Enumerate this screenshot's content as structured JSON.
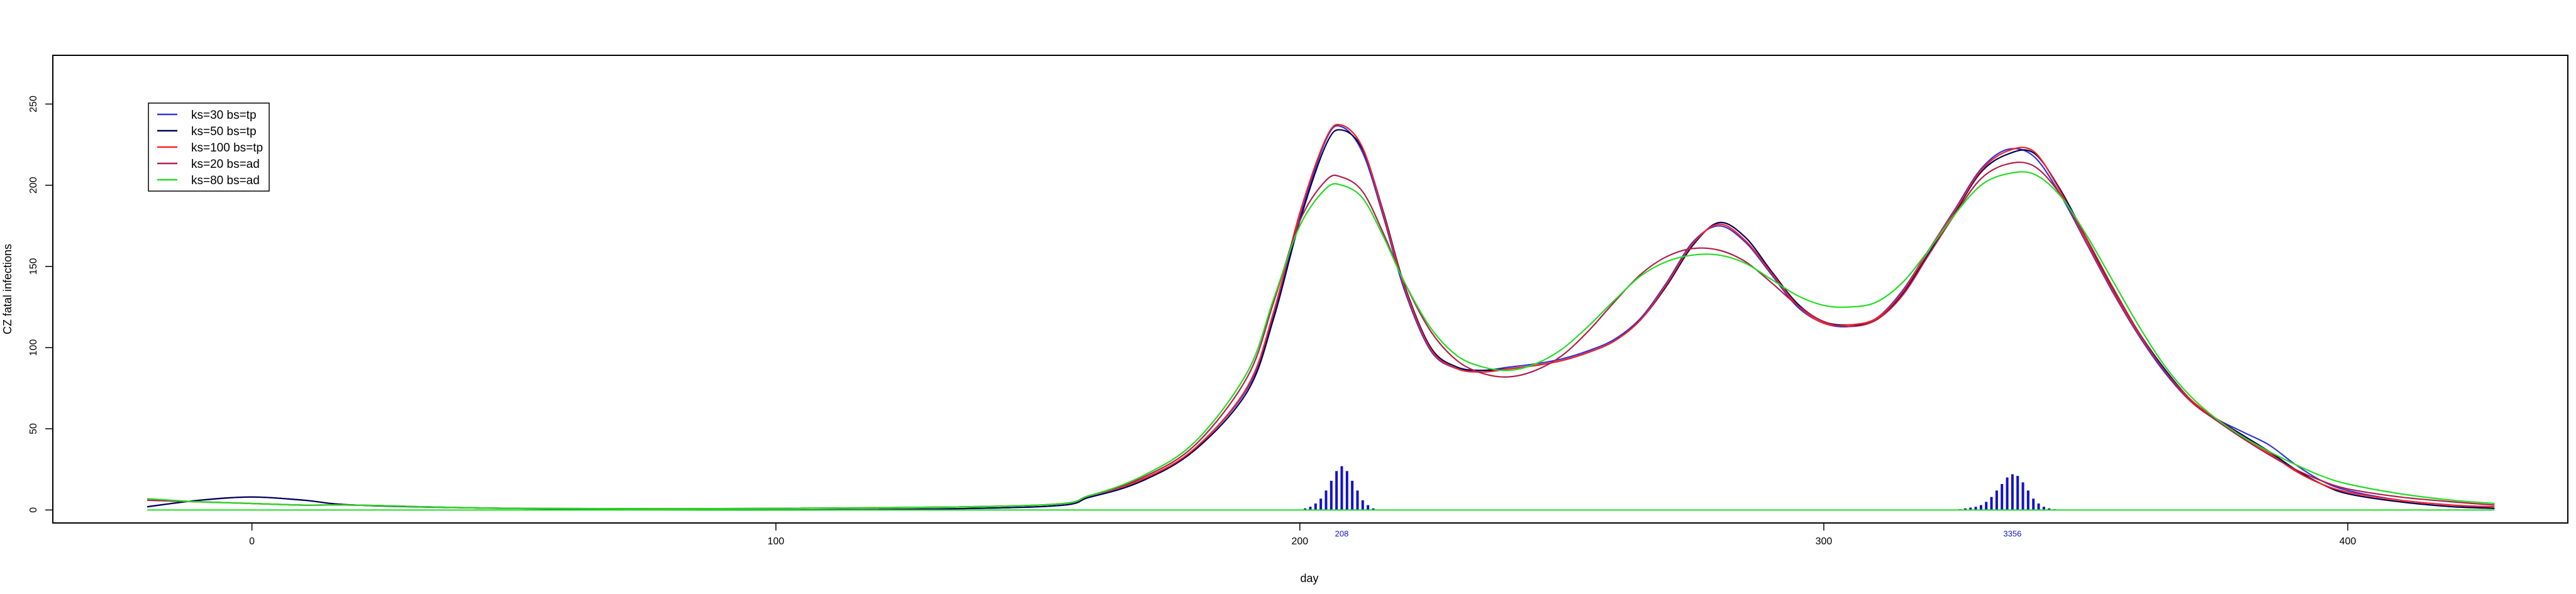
{
  "chart_data": {
    "type": "line",
    "xlabel": "day",
    "ylabel": "CZ fatal infections",
    "xlim": [
      -38,
      442
    ],
    "ylim": [
      -8,
      280
    ],
    "x_ticks": [
      0,
      100,
      200,
      300,
      400
    ],
    "x_tick_labels": [
      "0",
      "100",
      "200",
      "300",
      "400"
    ],
    "y_ticks": [
      0,
      50,
      100,
      150,
      200,
      250
    ],
    "y_tick_labels": [
      "0",
      "50",
      "100",
      "150",
      "200",
      "250"
    ],
    "grid": false,
    "legend_position": "top-left",
    "series": [
      {
        "name": "ks=30 bs=tp",
        "color": "#3333dd",
        "x": [
          -20,
          -10,
          0,
          10,
          20,
          50,
          100,
          150,
          160,
          170,
          180,
          190,
          195,
          200,
          205,
          208,
          212,
          216,
          220,
          225,
          230,
          235,
          240,
          245,
          250,
          255,
          260,
          265,
          270,
          275,
          280,
          285,
          290,
          295,
          300,
          305,
          310,
          315,
          320,
          325,
          330,
          335,
          340,
          345,
          350,
          355,
          360,
          365,
          370,
          375,
          380,
          385,
          390,
          395,
          400,
          410,
          420,
          428
        ],
        "y": [
          2,
          6,
          8,
          6,
          3,
          1,
          0,
          2,
          8,
          18,
          38,
          75,
          120,
          180,
          228,
          236,
          220,
          180,
          135,
          98,
          87,
          86,
          88,
          90,
          93,
          98,
          105,
          118,
          140,
          165,
          175,
          165,
          145,
          125,
          115,
          113,
          118,
          135,
          160,
          185,
          210,
          222,
          218,
          195,
          165,
          135,
          108,
          85,
          67,
          56,
          48,
          40,
          28,
          18,
          12,
          6,
          3,
          1
        ]
      },
      {
        "name": "ks=50 bs=tp",
        "color": "#000055",
        "x": [
          -20,
          -10,
          0,
          10,
          20,
          50,
          100,
          150,
          160,
          170,
          180,
          190,
          195,
          200,
          205,
          208,
          212,
          216,
          220,
          225,
          230,
          235,
          240,
          245,
          250,
          255,
          260,
          265,
          270,
          275,
          280,
          285,
          290,
          295,
          300,
          305,
          310,
          315,
          320,
          325,
          330,
          335,
          340,
          345,
          350,
          355,
          360,
          365,
          370,
          375,
          380,
          385,
          390,
          395,
          400,
          410,
          420,
          428
        ],
        "y": [
          2,
          6,
          8,
          6,
          3,
          1,
          0,
          2,
          8,
          18,
          37,
          73,
          118,
          178,
          225,
          234,
          222,
          183,
          138,
          100,
          88,
          86,
          87,
          89,
          92,
          97,
          104,
          117,
          138,
          163,
          177,
          168,
          147,
          127,
          116,
          114,
          117,
          133,
          158,
          183,
          208,
          219,
          220,
          198,
          168,
          137,
          110,
          87,
          68,
          56,
          46,
          36,
          25,
          16,
          10,
          5,
          2,
          1
        ]
      },
      {
        "name": "ks=100 bs=tp",
        "color": "#ff2020",
        "x": [
          -20,
          -10,
          0,
          10,
          20,
          50,
          100,
          150,
          160,
          170,
          180,
          190,
          195,
          200,
          205,
          208,
          212,
          216,
          220,
          225,
          230,
          235,
          240,
          245,
          250,
          255,
          260,
          265,
          270,
          275,
          280,
          285,
          290,
          295,
          300,
          305,
          310,
          315,
          320,
          325,
          330,
          335,
          340,
          345,
          350,
          355,
          360,
          365,
          370,
          375,
          380,
          385,
          390,
          395,
          400,
          410,
          420,
          428
        ],
        "y": [
          6,
          5,
          4,
          3,
          3,
          1,
          1,
          3,
          9,
          19,
          38,
          76,
          122,
          183,
          229,
          237,
          223,
          182,
          137,
          99,
          87,
          85,
          87,
          89,
          92,
          97,
          104,
          117,
          139,
          164,
          176,
          166,
          146,
          126,
          115,
          114,
          118,
          134,
          160,
          184,
          209,
          221,
          221,
          197,
          166,
          136,
          109,
          86,
          68,
          56,
          45,
          35,
          24,
          16,
          11,
          6,
          3,
          2
        ]
      },
      {
        "name": "ks=20 bs=ad",
        "color": "#b0204a",
        "x": [
          -20,
          -10,
          0,
          10,
          20,
          50,
          100,
          150,
          160,
          170,
          180,
          190,
          195,
          200,
          205,
          208,
          212,
          216,
          220,
          225,
          230,
          235,
          240,
          245,
          250,
          255,
          260,
          265,
          270,
          275,
          280,
          285,
          290,
          295,
          300,
          305,
          310,
          315,
          320,
          325,
          330,
          335,
          340,
          345,
          350,
          355,
          360,
          365,
          370,
          375,
          380,
          385,
          390,
          395,
          400,
          410,
          420,
          428
        ],
        "y": [
          6,
          5,
          4,
          3,
          3,
          1,
          1,
          3,
          9,
          20,
          40,
          82,
          128,
          178,
          203,
          205,
          196,
          170,
          140,
          110,
          92,
          84,
          82,
          86,
          95,
          110,
          128,
          145,
          156,
          161,
          160,
          153,
          140,
          126,
          116,
          113,
          117,
          132,
          157,
          182,
          204,
          213,
          212,
          195,
          168,
          138,
          110,
          86,
          67,
          55,
          44,
          34,
          25,
          18,
          13,
          8,
          5,
          3
        ]
      },
      {
        "name": "ks=80 bs=ad",
        "color": "#22dd22",
        "x": [
          -20,
          -10,
          0,
          10,
          20,
          50,
          100,
          150,
          160,
          170,
          180,
          190,
          195,
          200,
          205,
          208,
          212,
          216,
          220,
          225,
          230,
          235,
          240,
          245,
          250,
          255,
          260,
          265,
          270,
          275,
          280,
          285,
          290,
          295,
          300,
          305,
          310,
          315,
          320,
          325,
          330,
          335,
          340,
          345,
          350,
          355,
          360,
          365,
          370,
          375,
          380,
          385,
          390,
          395,
          400,
          410,
          420,
          428
        ],
        "y": [
          7,
          5,
          4,
          3,
          3,
          1,
          1,
          3,
          9,
          21,
          42,
          85,
          130,
          175,
          198,
          200,
          192,
          168,
          140,
          112,
          95,
          88,
          86,
          90,
          99,
          113,
          129,
          144,
          153,
          157,
          157,
          152,
          142,
          132,
          126,
          125,
          128,
          140,
          160,
          182,
          200,
          207,
          207,
          194,
          170,
          142,
          114,
          89,
          70,
          56,
          45,
          36,
          28,
          21,
          16,
          10,
          6,
          4
        ]
      }
    ],
    "bars": {
      "color": "#1111cc",
      "x": [
        201,
        202,
        203,
        204,
        205,
        206,
        207,
        208,
        209,
        210,
        211,
        212,
        213,
        214,
        326,
        327,
        328,
        329,
        330,
        331,
        332,
        333,
        334,
        335,
        336,
        337,
        338,
        339,
        340,
        341,
        342,
        343,
        344,
        345
      ],
      "y": [
        1,
        2,
        4,
        7,
        12,
        18,
        24,
        27,
        24,
        18,
        12,
        6,
        3,
        1,
        0.5,
        1,
        1.5,
        2,
        3,
        5,
        8,
        12,
        16,
        20,
        22,
        21,
        17,
        12,
        7,
        4,
        2,
        1,
        0.5,
        0.3
      ]
    },
    "annotations": [
      {
        "text": "208",
        "x": 208,
        "color": "#1111cc"
      },
      {
        "text": "3356",
        "x": 336,
        "color": "#1111cc"
      }
    ]
  }
}
